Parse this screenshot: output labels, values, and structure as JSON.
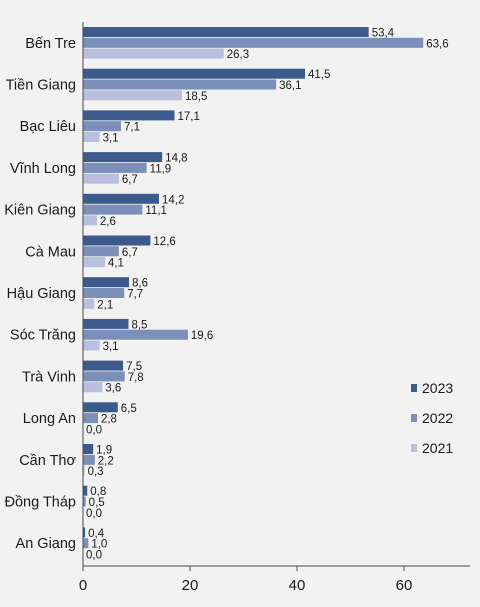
{
  "chart_data": {
    "type": "bar",
    "orientation": "horizontal",
    "categories": [
      "Bến Tre",
      "Tiền Giang",
      "Bạc Liêu",
      "Vĩnh Long",
      "Kiên Giang",
      "Cà Mau",
      "Hậu Giang",
      "Sóc Trăng",
      "Trà Vinh",
      "Long An",
      "Cần Thơ",
      "Đồng Tháp",
      "An Giang"
    ],
    "series": [
      {
        "name": "2023",
        "color": "#3c5a8c",
        "values": [
          53.4,
          41.5,
          17.1,
          14.8,
          14.2,
          12.6,
          8.6,
          8.5,
          7.5,
          6.5,
          1.9,
          0.8,
          0.4
        ],
        "labels": [
          "53,4",
          "41,5",
          "17,1",
          "14,8",
          "14,2",
          "12,6",
          "8,6",
          "8,5",
          "7,5",
          "6,5",
          "1,9",
          "0,8",
          "0,4"
        ]
      },
      {
        "name": "2022",
        "color": "#7b8fb8",
        "values": [
          63.6,
          36.1,
          7.1,
          11.9,
          11.1,
          6.7,
          7.7,
          19.6,
          7.8,
          2.8,
          2.2,
          0.5,
          1.0
        ],
        "labels": [
          "63,6",
          "36,1",
          "7,1",
          "11,9",
          "11,1",
          "6,7",
          "7,7",
          "19,6",
          "7,8",
          "2,8",
          "2,2",
          "0,5",
          "1,0"
        ]
      },
      {
        "name": "2021",
        "color": "#b9bfdc",
        "values": [
          26.3,
          18.5,
          3.1,
          6.7,
          2.6,
          4.1,
          2.1,
          3.1,
          3.6,
          0.0,
          0.3,
          0.0,
          0.0
        ],
        "labels": [
          "26,3",
          "18,5",
          "3,1",
          "6,7",
          "2,6",
          "4,1",
          "2,1",
          "3,1",
          "3,6",
          "0,0",
          "0,3",
          "0,0",
          "0,0"
        ]
      }
    ],
    "xlim": [
      0,
      72
    ],
    "xticks": [
      0,
      20,
      40,
      60
    ],
    "legend_position": "right",
    "grid": false,
    "background": "#f2f2f2"
  }
}
